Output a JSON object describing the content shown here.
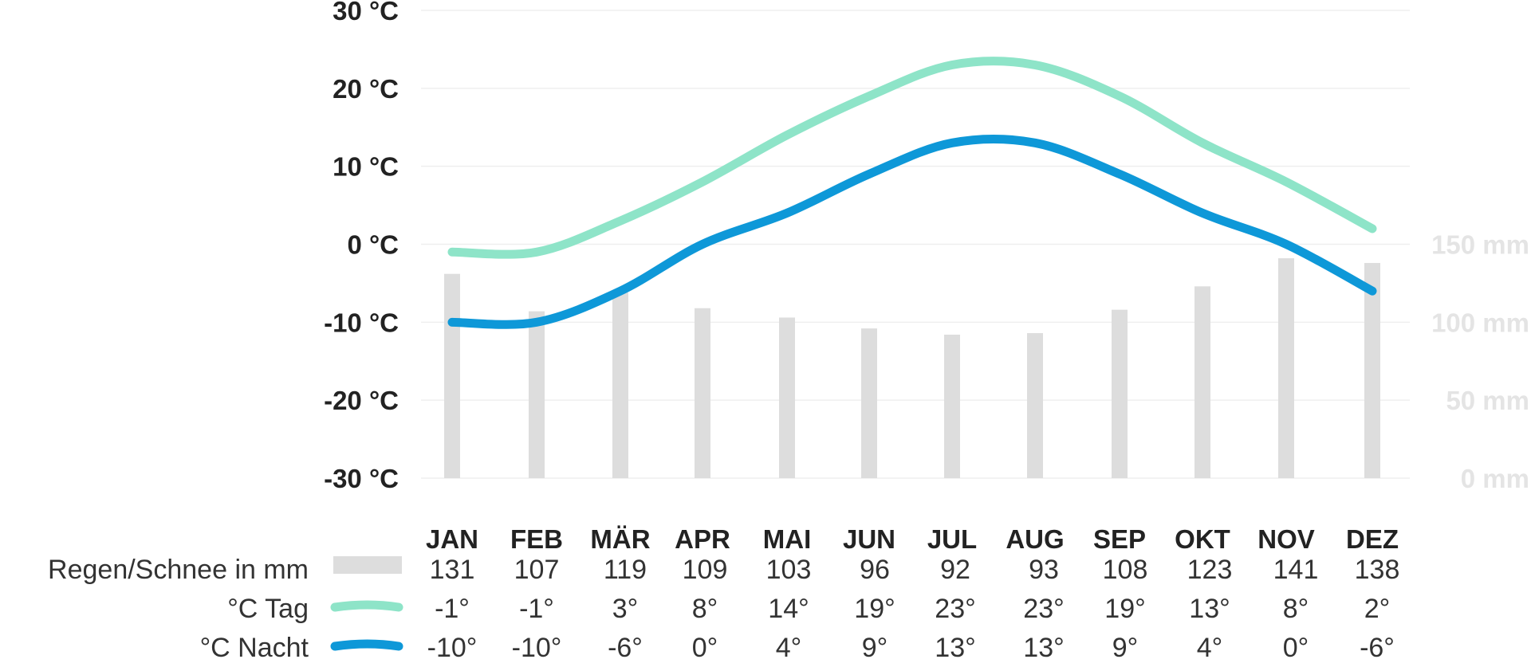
{
  "chart_data": {
    "type": "bar+line",
    "categories": [
      "JAN",
      "FEB",
      "MÄR",
      "APR",
      "MAI",
      "JUN",
      "JUL",
      "AUG",
      "SEP",
      "OKT",
      "NOV",
      "DEZ"
    ],
    "series": [
      {
        "name": "Regen/Schnee in mm",
        "type": "bar",
        "axis": "right",
        "color": "#dddddd",
        "values": [
          131,
          107,
          119,
          109,
          103,
          96,
          92,
          93,
          108,
          123,
          141,
          138
        ]
      },
      {
        "name": "°C Tag",
        "type": "line",
        "axis": "left",
        "color": "#8ee4c8",
        "values": [
          -1,
          -1,
          3,
          8,
          14,
          19,
          23,
          23,
          19,
          13,
          8,
          2
        ]
      },
      {
        "name": "°C Nacht",
        "type": "line",
        "axis": "left",
        "color": "#0e98d8",
        "values": [
          -10,
          -10,
          -6,
          0,
          4,
          9,
          13,
          13,
          9,
          4,
          0,
          -6
        ]
      }
    ],
    "left_axis": {
      "ylim": [
        -30,
        30
      ],
      "ticks": [
        30,
        20,
        10,
        0,
        -10,
        -20,
        -30
      ],
      "tick_labels": [
        "30 °C",
        "20 °C",
        "10 °C",
        "0 °C",
        "-10 °C",
        "-20 °C",
        "-30 °C"
      ]
    },
    "right_axis": {
      "ylim": [
        0,
        150
      ],
      "ticks": [
        150,
        100,
        50,
        0
      ],
      "tick_labels": [
        "150 mm",
        "100 mm",
        "50 mm",
        "0 mm"
      ],
      "color": "#e4e4e4"
    },
    "grid": true,
    "legend": "table-below",
    "table": {
      "rows": [
        {
          "label": "Regen/Schnee in mm",
          "swatch": "bar",
          "cells": [
            "131",
            "107",
            "119",
            "109",
            "103",
            "96",
            "92",
            "93",
            "108",
            "123",
            "141",
            "138"
          ]
        },
        {
          "label": "°C Tag",
          "swatch": "line-day",
          "cells": [
            "-1°",
            "-1°",
            "3°",
            "8°",
            "14°",
            "19°",
            "23°",
            "23°",
            "19°",
            "13°",
            "8°",
            "2°"
          ]
        },
        {
          "label": "°C Nacht",
          "swatch": "line-night",
          "cells": [
            "-10°",
            "-10°",
            "-6°",
            "0°",
            "4°",
            "9°",
            "13°",
            "13°",
            "9°",
            "4°",
            "0°",
            "-6°"
          ]
        }
      ]
    }
  }
}
